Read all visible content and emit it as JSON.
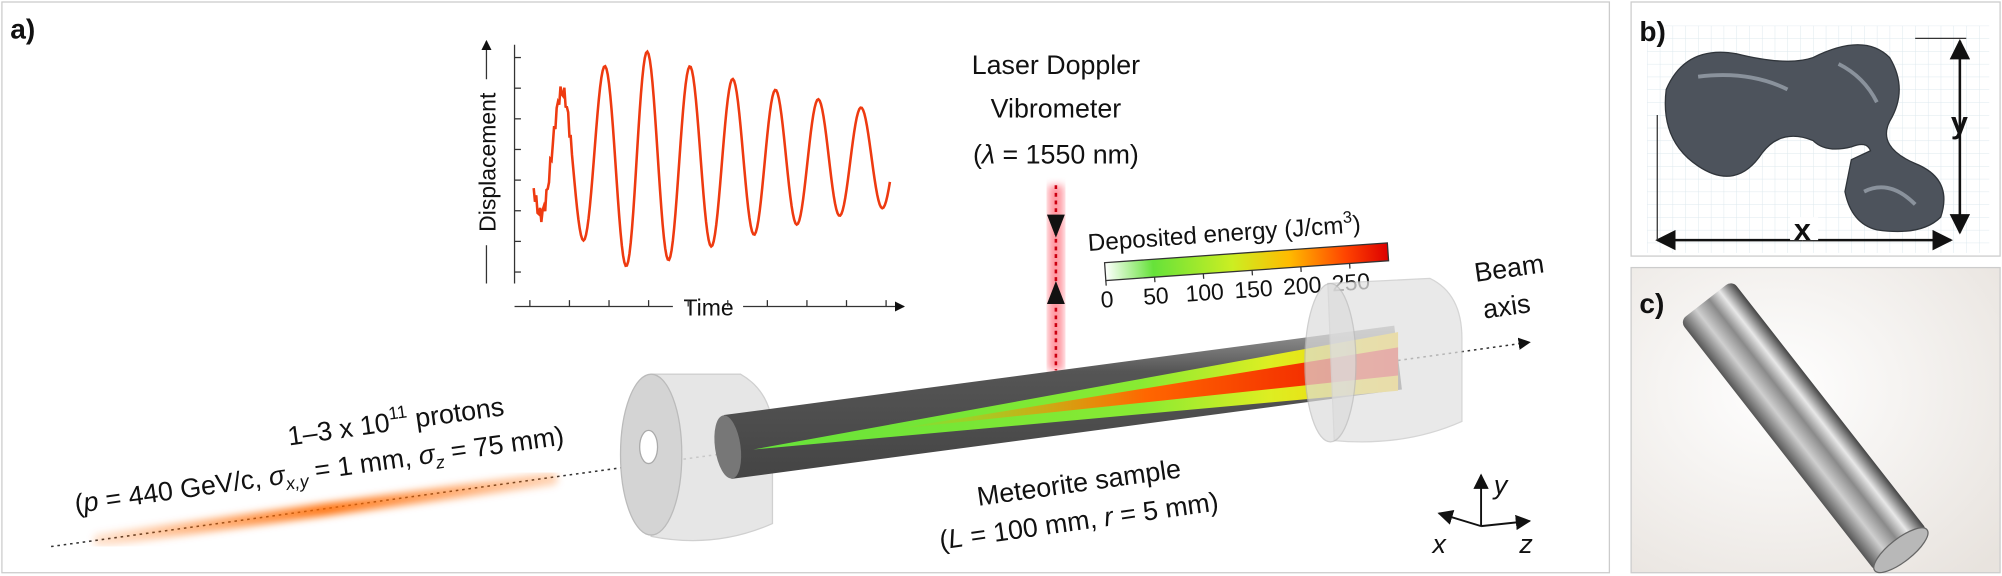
{
  "panels": {
    "a": {
      "label": "a)",
      "inset": {
        "y_label": "Displacement",
        "x_label": "Time"
      },
      "laser": {
        "lines": [
          "Laser Doppler",
          "Vibrometer"
        ],
        "wavelength": [
          "(",
          "λ",
          " = 1550 nm)"
        ]
      },
      "colorbar": {
        "label": [
          "Deposited energy (J/cm",
          "3",
          ")"
        ],
        "ticks": [
          0,
          50,
          100,
          150,
          200,
          250
        ],
        "lim": [
          0,
          290
        ]
      },
      "beam_axis": [
        "Beam",
        "axis"
      ],
      "protons": [
        "1–3 x 10",
        "11",
        " protons"
      ],
      "beam_params": [
        "(",
        "p",
        " = 440 GeV/c, ",
        "σ",
        "x,y",
        " = 1 mm, ",
        "σ",
        "z",
        " = 75 mm)"
      ],
      "sample": {
        "name": "Meteorite sample",
        "dims": [
          "(",
          "L",
          " = 100 mm, ",
          "r",
          " = 5 mm)"
        ]
      },
      "axes": {
        "x": "x",
        "y": "y",
        "z": "z"
      }
    },
    "b": {
      "label": "b)",
      "x": "x",
      "y": "y"
    },
    "c": {
      "label": "c)"
    }
  }
}
